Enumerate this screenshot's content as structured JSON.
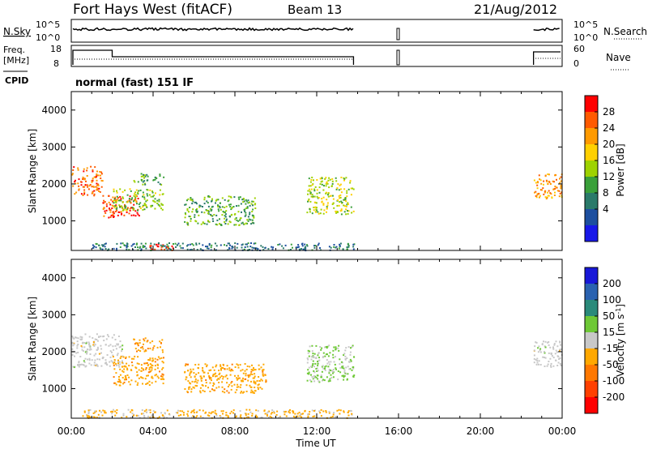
{
  "header": {
    "title": "Fort Hays West (fitACF)",
    "beam": "Beam 13",
    "date": "21/Aug/2012"
  },
  "noise_panel": {
    "left_label": "N.Sky",
    "left_ticks": [
      "10^5",
      "10^0"
    ],
    "right_label": "N.Search",
    "right_ticks": [
      "10^5",
      "10^0"
    ]
  },
  "freq_panel": {
    "left_label_1": "Freq.",
    "left_label_2": "[MHz]",
    "left_ticks": [
      "18",
      "8"
    ],
    "right_label": "Nave",
    "right_ticks": [
      "60",
      "0"
    ]
  },
  "cpid_panel": {
    "label": "CPID",
    "text": "normal (fast) 151 IF"
  },
  "power_colorbar": {
    "label": "Power [dB]",
    "ticks": [
      "28",
      "24",
      "20",
      "16",
      "12",
      "8",
      "4"
    ],
    "colors": [
      "#ff0000",
      "#ff5a00",
      "#ff9a00",
      "#ffd000",
      "#9ed200",
      "#3aa03a",
      "#2a7a6a",
      "#1d4f9f",
      "#1818e8"
    ]
  },
  "velocity_colorbar": {
    "label": "Velocity [m s^-1]",
    "ticks": [
      "200",
      "100",
      "50",
      "15",
      "-15",
      "-50",
      "-100",
      "-200"
    ],
    "colors": [
      "#1818d8",
      "#2a62b0",
      "#2a8a7a",
      "#6ec836",
      "#c8c8c8",
      "#ffa800",
      "#ff7800",
      "#ff4000",
      "#ff0000"
    ]
  },
  "chart_data": [
    {
      "type": "heatmap",
      "title": "",
      "xlabel": "Time UT",
      "ylabel": "Slant Range [km]",
      "x_ticks": [
        "00:00",
        "04:00",
        "08:00",
        "12:00",
        "16:00",
        "20:00",
        "00:00"
      ],
      "xlim": [
        0,
        24
      ],
      "ylim": [
        200,
        4500
      ],
      "y_ticks": [
        1000,
        2000,
        3000,
        4000
      ],
      "value_label": "Power [dB]",
      "value_range": [
        0,
        30
      ],
      "regions": [
        {
          "t": [
            0.0,
            1.5
          ],
          "r": [
            1700,
            2500
          ],
          "value": 24
        },
        {
          "t": [
            1.5,
            3.3
          ],
          "r": [
            1100,
            1700
          ],
          "value": 26
        },
        {
          "t": [
            2.0,
            4.5
          ],
          "r": [
            1300,
            1900
          ],
          "value": 14
        },
        {
          "t": [
            3.0,
            4.5
          ],
          "r": [
            2000,
            2300
          ],
          "value": 12
        },
        {
          "t": [
            5.5,
            9.0
          ],
          "r": [
            900,
            1700
          ],
          "value": 12
        },
        {
          "t": [
            3.8,
            5.0
          ],
          "r": [
            220,
            400
          ],
          "value": 28
        },
        {
          "t": [
            1.0,
            13.8
          ],
          "r": [
            220,
            420
          ],
          "value": 8
        },
        {
          "t": [
            11.5,
            13.8
          ],
          "r": [
            1200,
            2200
          ],
          "value": 16
        },
        {
          "t": [
            22.6,
            24.0
          ],
          "r": [
            1600,
            2300
          ],
          "value": 22
        }
      ]
    },
    {
      "type": "heatmap",
      "title": "",
      "xlabel": "Time UT",
      "ylabel": "Slant Range [km]",
      "x_ticks": [
        "00:00",
        "04:00",
        "08:00",
        "12:00",
        "16:00",
        "20:00",
        "00:00"
      ],
      "xlim": [
        0,
        24
      ],
      "ylim": [
        200,
        4500
      ],
      "y_ticks": [
        1000,
        2000,
        3000,
        4000
      ],
      "value_label": "Velocity [m s^-1]",
      "value_range": [
        -250,
        250
      ],
      "regions": [
        {
          "t": [
            0.0,
            2.5
          ],
          "r": [
            1600,
            2500
          ],
          "value": 0
        },
        {
          "t": [
            2.0,
            4.5
          ],
          "r": [
            1100,
            1900
          ],
          "value": -60
        },
        {
          "t": [
            3.0,
            4.5
          ],
          "r": [
            2000,
            2400
          ],
          "value": -70
        },
        {
          "t": [
            5.5,
            9.5
          ],
          "r": [
            900,
            1700
          ],
          "value": -60
        },
        {
          "t": [
            0.5,
            13.8
          ],
          "r": [
            220,
            450
          ],
          "value": -40
        },
        {
          "t": [
            11.5,
            13.8
          ],
          "r": [
            1200,
            2200
          ],
          "value": 30
        },
        {
          "t": [
            22.6,
            24.0
          ],
          "r": [
            1600,
            2300
          ],
          "value": 0
        }
      ]
    }
  ]
}
